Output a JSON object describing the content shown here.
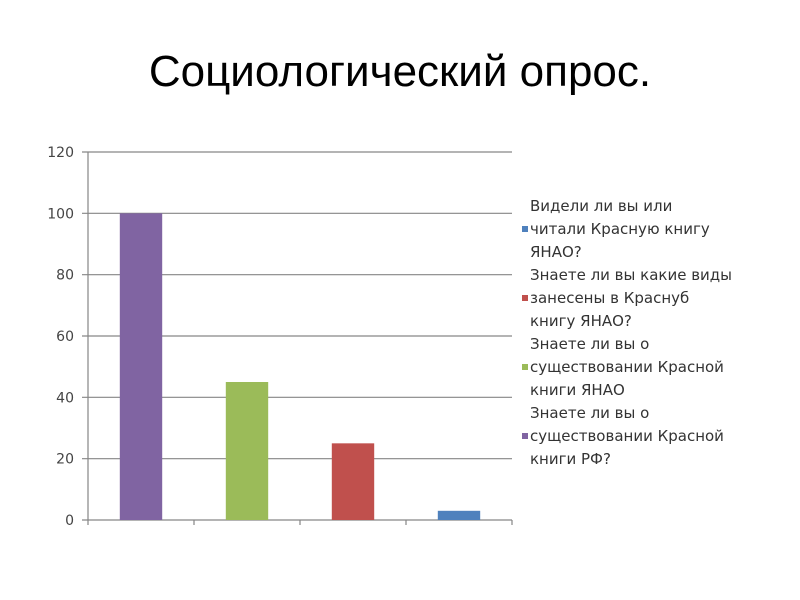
{
  "slide": {
    "title": "Социологический опрос."
  },
  "colors": {
    "purple": "#8064A2",
    "green": "#9BBB59",
    "red": "#C0504D",
    "blue": "#4F81BD",
    "grid": "#868686"
  },
  "chart_data": {
    "type": "bar",
    "title": "",
    "xlabel": "",
    "ylabel": "",
    "ylim": [
      0,
      120
    ],
    "yticks": [
      "0",
      "20",
      "40",
      "60",
      "80",
      "100",
      "120"
    ],
    "grid": true,
    "legend_position": "right",
    "bars": [
      {
        "series": "Знаете ли вы о существовании Красной книги РФ?",
        "value": 100,
        "color": "#8064A2"
      },
      {
        "series": "Знаете ли вы о существовании Красной книги ЯНАО",
        "value": 45,
        "color": "#9BBB59"
      },
      {
        "series": "Знаете ли вы какие виды занесены в Краснуб книгу ЯНАО?",
        "value": 25,
        "color": "#C0504D"
      },
      {
        "series": "Видели ли вы или читали Красную книгу ЯНАО?",
        "value": 3,
        "color": "#4F81BD"
      }
    ],
    "legend": [
      {
        "label": "Видели ли вы или\nчитали Красную книгу\nЯНАО?",
        "color": "#4F81BD"
      },
      {
        "label": "Знаете ли вы какие виды\nзанесены в Краснуб\nкнигу ЯНАО?",
        "color": "#C0504D"
      },
      {
        "label": "Знаете ли вы о\nсуществовании Красной\nкниги ЯНАО",
        "color": "#9BBB59"
      },
      {
        "label": "Знаете ли вы о\nсуществовании Красной\nкниги РФ?",
        "color": "#8064A2"
      }
    ]
  }
}
